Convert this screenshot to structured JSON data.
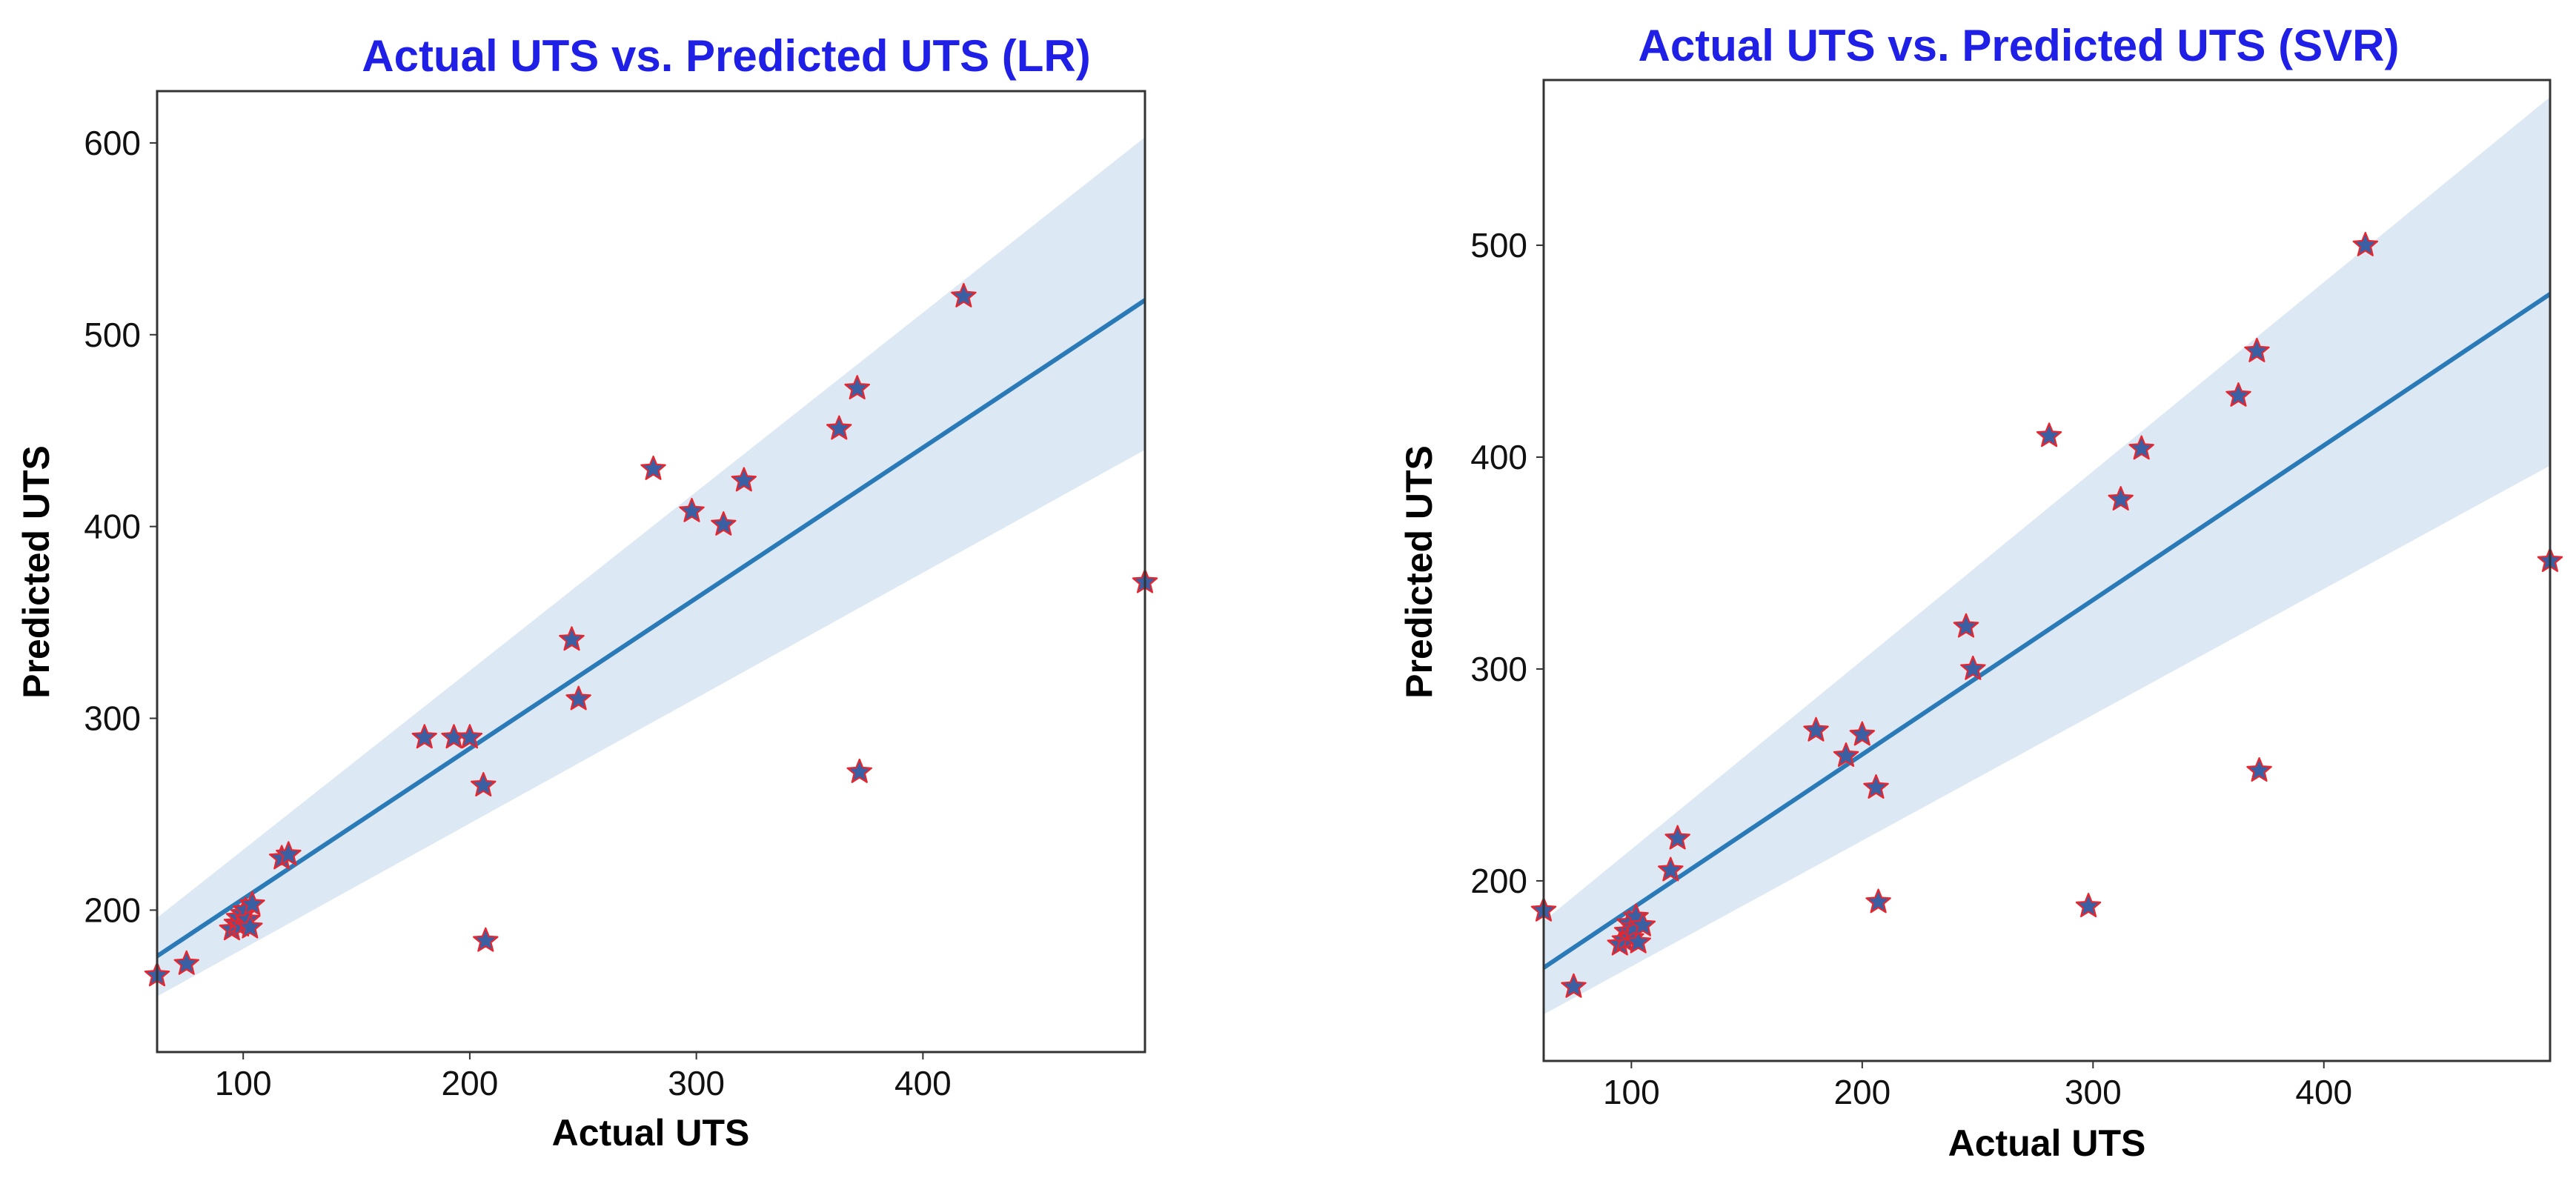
{
  "colors": {
    "title": "#1f1fe6",
    "line": "#2a7ab8",
    "band": "#dce8f3",
    "star_fill": "#3b5fa3",
    "star_edge": "#e8262e",
    "frame": "#333333"
  },
  "chart_data": [
    {
      "type": "scatter",
      "title": "Actual UTS vs. Predicted UTS (LR)",
      "xlabel": "Actual UTS",
      "ylabel": "Predicted UTS",
      "xlim": [
        62,
        498
      ],
      "ylim": [
        126,
        627
      ],
      "xticks": [
        100,
        200,
        300,
        400
      ],
      "yticks": [
        200,
        300,
        400,
        500,
        600
      ],
      "marker": "star",
      "points": [
        {
          "x": 62,
          "y": 166
        },
        {
          "x": 75,
          "y": 172
        },
        {
          "x": 95,
          "y": 190
        },
        {
          "x": 97,
          "y": 193
        },
        {
          "x": 98,
          "y": 196
        },
        {
          "x": 99,
          "y": 192
        },
        {
          "x": 100,
          "y": 198
        },
        {
          "x": 101,
          "y": 200
        },
        {
          "x": 102,
          "y": 195
        },
        {
          "x": 103,
          "y": 191
        },
        {
          "x": 104,
          "y": 203
        },
        {
          "x": 117,
          "y": 227
        },
        {
          "x": 120,
          "y": 229
        },
        {
          "x": 180,
          "y": 290
        },
        {
          "x": 193,
          "y": 290
        },
        {
          "x": 200,
          "y": 290
        },
        {
          "x": 206,
          "y": 265
        },
        {
          "x": 207,
          "y": 184
        },
        {
          "x": 245,
          "y": 341
        },
        {
          "x": 248,
          "y": 310
        },
        {
          "x": 281,
          "y": 430
        },
        {
          "x": 298,
          "y": 408
        },
        {
          "x": 312,
          "y": 401
        },
        {
          "x": 321,
          "y": 424
        },
        {
          "x": 363,
          "y": 451
        },
        {
          "x": 371,
          "y": 472
        },
        {
          "x": 372,
          "y": 272
        },
        {
          "x": 418,
          "y": 520
        },
        {
          "x": 498,
          "y": 371
        }
      ],
      "regression": {
        "x": [
          62,
          498
        ],
        "y": [
          176,
          518
        ]
      },
      "ci_band": {
        "x": [
          62,
          498
        ],
        "lower": [
          155,
          440
        ],
        "upper": [
          196,
          603
        ]
      }
    },
    {
      "type": "scatter",
      "title": "Actual UTS vs. Predicted UTS (SVR)",
      "xlabel": "Actual UTS",
      "ylabel": "Predicted UTS",
      "xlim": [
        62,
        498
      ],
      "ylim": [
        115,
        578
      ],
      "xticks": [
        100,
        200,
        300,
        400
      ],
      "yticks": [
        200,
        300,
        400,
        500
      ],
      "marker": "star",
      "points": [
        {
          "x": 62,
          "y": 186
        },
        {
          "x": 75,
          "y": 150
        },
        {
          "x": 95,
          "y": 170
        },
        {
          "x": 97,
          "y": 172
        },
        {
          "x": 98,
          "y": 176
        },
        {
          "x": 99,
          "y": 180
        },
        {
          "x": 100,
          "y": 173
        },
        {
          "x": 101,
          "y": 178
        },
        {
          "x": 102,
          "y": 183
        },
        {
          "x": 103,
          "y": 171
        },
        {
          "x": 105,
          "y": 179
        },
        {
          "x": 117,
          "y": 205
        },
        {
          "x": 120,
          "y": 220
        },
        {
          "x": 180,
          "y": 271
        },
        {
          "x": 193,
          "y": 259
        },
        {
          "x": 200,
          "y": 269
        },
        {
          "x": 206,
          "y": 244
        },
        {
          "x": 207,
          "y": 190
        },
        {
          "x": 245,
          "y": 320
        },
        {
          "x": 248,
          "y": 300
        },
        {
          "x": 281,
          "y": 410
        },
        {
          "x": 298,
          "y": 188
        },
        {
          "x": 312,
          "y": 380
        },
        {
          "x": 321,
          "y": 404
        },
        {
          "x": 363,
          "y": 429
        },
        {
          "x": 371,
          "y": 450
        },
        {
          "x": 372,
          "y": 252
        },
        {
          "x": 418,
          "y": 500
        },
        {
          "x": 498,
          "y": 351
        }
      ],
      "regression": {
        "x": [
          62,
          498
        ],
        "y": [
          159,
          477
        ]
      },
      "ci_band": {
        "x": [
          62,
          498
        ],
        "lower": [
          137,
          396
        ],
        "upper": [
          181,
          570
        ]
      }
    }
  ]
}
